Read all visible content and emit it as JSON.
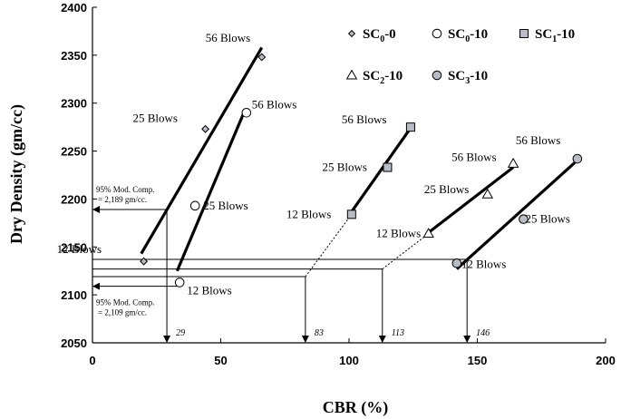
{
  "chart_data": {
    "type": "scatter",
    "title": "",
    "xlabel": "CBR (%)",
    "ylabel": "Dry Density (gm/cc)",
    "xlim": [
      0,
      200
    ],
    "ylim": [
      2050,
      2400
    ],
    "xticks": [
      "0",
      "50",
      "100",
      "150",
      "200"
    ],
    "yticks": [
      "2050",
      "2100",
      "2150",
      "2200",
      "2250",
      "2300",
      "2350",
      "2400"
    ],
    "grid": false,
    "legend_position": "top-right",
    "series": [
      {
        "name": "SC0-0",
        "legend_base": "SC",
        "legend_sub": "0",
        "legend_suffix": "-0",
        "marker": "diamond",
        "fill": "#b8bcc6",
        "points": [
          {
            "x": 20,
            "y": 2135,
            "label": "12 Blows"
          },
          {
            "x": 44,
            "y": 2273,
            "label": "25 Blows"
          },
          {
            "x": 66,
            "y": 2348,
            "label": "56 Blows"
          }
        ],
        "fit_line": [
          [
            19,
            2143
          ],
          [
            66,
            2358
          ]
        ]
      },
      {
        "name": "SC0-10",
        "legend_base": "SC",
        "legend_sub": "0",
        "legend_suffix": "-10",
        "marker": "circle",
        "fill": "#ffffff",
        "points": [
          {
            "x": 34,
            "y": 2113,
            "label": "12 Blows"
          },
          {
            "x": 40,
            "y": 2193,
            "label": "25 Blows"
          },
          {
            "x": 60,
            "y": 2290,
            "label": "56 Blows"
          }
        ],
        "fit_line": [
          [
            33,
            2125
          ],
          [
            59,
            2290
          ]
        ]
      },
      {
        "name": "SC1-10",
        "legend_base": "SC",
        "legend_sub": "1",
        "legend_suffix": "-10",
        "marker": "square",
        "fill": "#b8bcc6",
        "points": [
          {
            "x": 101,
            "y": 2184,
            "label": "12 Blows"
          },
          {
            "x": 115,
            "y": 2233,
            "label": "25 Blows"
          },
          {
            "x": 124,
            "y": 2275,
            "label": "56 Blows"
          }
        ],
        "fit_line": [
          [
            100,
            2183
          ],
          [
            124,
            2274
          ]
        ]
      },
      {
        "name": "SC2-10",
        "legend_base": "SC",
        "legend_sub": "2",
        "legend_suffix": "-10",
        "marker": "triangle",
        "fill": "#ffffff",
        "points": [
          {
            "x": 131,
            "y": 2164,
            "label": "12 Blows"
          },
          {
            "x": 154,
            "y": 2205,
            "label": "25 Blows"
          },
          {
            "x": 164,
            "y": 2237,
            "label": "56 Blows"
          }
        ],
        "fit_line": [
          [
            130,
            2163
          ],
          [
            164,
            2233
          ]
        ]
      },
      {
        "name": "SC3-10",
        "legend_base": "SC",
        "legend_sub": "3",
        "legend_suffix": "-10",
        "marker": "circle",
        "fill": "#b8bcc6",
        "points": [
          {
            "x": 142,
            "y": 2133,
            "label": "12 Blows"
          },
          {
            "x": 168,
            "y": 2179,
            "label": "25 Blows"
          },
          {
            "x": 189,
            "y": 2242,
            "label": "56 Blows"
          }
        ],
        "fit_line": [
          [
            142,
            2127
          ],
          [
            188,
            2238
          ]
        ]
      }
    ],
    "reference_lines": {
      "upper_density": 2189,
      "lower_density": 2109,
      "upper_note": [
        "95% Mod. Comp.",
        "= 2,189 gm/cc."
      ],
      "lower_note": [
        "95% Mod. Comp.",
        "= 2,109 gm/cc."
      ],
      "cbr_drops": [
        {
          "x": 29,
          "label": "29"
        },
        {
          "x": 83,
          "label": "83"
        },
        {
          "x": 113,
          "label": "113"
        },
        {
          "x": 146,
          "label": "146"
        }
      ]
    }
  }
}
